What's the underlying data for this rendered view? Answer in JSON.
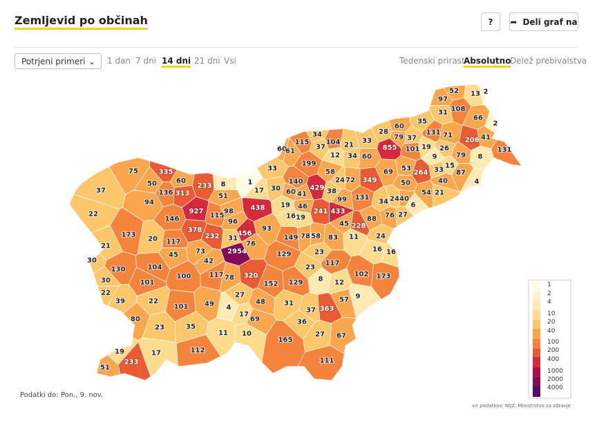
{
  "header": {
    "title": "Zemljevid po občinah",
    "help": "?",
    "share": "Deli graf na"
  },
  "controls": {
    "dropdown": "Potrjeni primeri",
    "periods": [
      "1 dan",
      "7 dni",
      "14 dni",
      "21 dni",
      "Vsi"
    ],
    "selected_period": 2,
    "metrics": [
      "Tedenski prirast",
      "Absolutno",
      "Delež prebivalstva"
    ],
    "selected_metric": 1
  },
  "map": {
    "values": [
      52,
      13,
      2,
      97,
      108,
      31,
      66,
      2,
      28,
      60,
      35,
      131,
      71,
      206,
      41,
      34,
      33,
      79,
      37,
      104,
      21,
      115,
      37,
      855,
      101,
      19,
      26,
      8,
      131,
      60,
      61,
      12,
      34,
      60,
      9,
      79,
      199,
      53,
      15,
      33,
      87,
      264,
      75,
      335,
      33,
      58,
      69,
      60,
      233,
      8,
      1,
      17,
      30,
      140,
      24,
      72,
      349,
      50,
      40,
      4,
      50,
      136,
      313,
      51,
      60,
      41,
      429,
      38,
      54,
      21,
      37,
      94,
      99,
      131,
      34,
      24,
      40,
      6,
      438,
      19,
      46,
      241,
      433,
      22,
      927,
      115,
      98,
      16,
      19,
      76,
      27,
      88,
      146,
      96,
      45,
      228,
      378,
      93,
      173,
      232,
      456,
      149,
      78,
      58,
      83,
      11,
      24,
      20,
      117,
      31,
      76,
      21,
      45,
      73,
      2954,
      129,
      23,
      16,
      16,
      30,
      42,
      117,
      130,
      104,
      23,
      100,
      117,
      78,
      320,
      102,
      173,
      30,
      101,
      152,
      129,
      8,
      12,
      22,
      27,
      9,
      39,
      22,
      48,
      31,
      57,
      363,
      101,
      49,
      4,
      37,
      17,
      69,
      80,
      35,
      36,
      23,
      11,
      10,
      27,
      67,
      165,
      112,
      19,
      17,
      233,
      111,
      51
    ]
  },
  "legend": {
    "ticks": [
      1,
      2,
      4,
      10,
      20,
      40,
      100,
      200,
      400,
      1000,
      2000,
      4000
    ],
    "colors": [
      "#fffbe9",
      "#fff3cf",
      "#feeab2",
      "#fddc8e",
      "#fcc66a",
      "#f9a64d",
      "#f4833c",
      "#ea5b33",
      "#d62a3c",
      "#ae0f4a",
      "#840a5a",
      "#5a0a6a"
    ]
  },
  "footer": {
    "date": "Podatki do: Pon., 9. nov.",
    "source": "vir podatkov: NIJZ, Ministrstvo za zdravje"
  }
}
